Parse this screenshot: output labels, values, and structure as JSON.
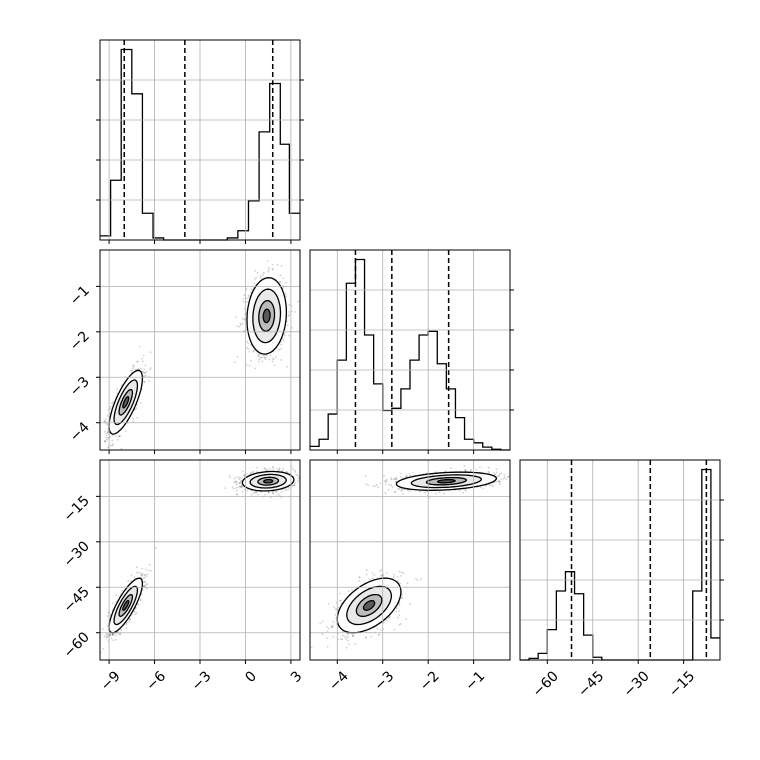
{
  "chart_data": {
    "type": "corner",
    "title": "",
    "grid": true,
    "parameters": [
      {
        "ticks": [
          -9,
          -6,
          -3,
          0,
          3
        ],
        "tick_labels": [
          "−9",
          "−6",
          "−3",
          "0",
          "3"
        ],
        "range": [
          -9.6,
          3.6
        ],
        "quantiles": [
          -8.0,
          -4.0,
          1.8
        ]
      },
      {
        "ticks": [
          -4,
          -3,
          -2,
          -1
        ],
        "tick_labels": [
          "−4",
          "−3",
          "−2",
          "−1"
        ],
        "range": [
          -4.6,
          -0.2
        ],
        "quantiles": [
          -3.6,
          -2.8,
          -1.55
        ]
      },
      {
        "ticks": [
          -60,
          -45,
          -30,
          -15
        ],
        "tick_labels": [
          "−60",
          "−45",
          "−30",
          "−15"
        ],
        "range": [
          -69,
          -3
        ],
        "quantiles": [
          -52,
          -26,
          -7.5
        ]
      }
    ],
    "histograms": [
      {
        "param": 0,
        "bin_edges": [
          -9.6,
          -8.9,
          -8.2,
          -7.5,
          -6.8,
          -6.1,
          -5.4,
          -4.7,
          -4.0,
          -3.3,
          -2.6,
          -1.9,
          -1.2,
          -0.5,
          0.2,
          0.9,
          1.6,
          2.3,
          2.9,
          3.6
        ],
        "counts": [
          4,
          58,
          185,
          142,
          26,
          2,
          0,
          0,
          0,
          0,
          0,
          0,
          2,
          9,
          38,
          105,
          152,
          93,
          26
        ]
      },
      {
        "param": 1,
        "bin_edges": [
          -4.6,
          -4.4,
          -4.2,
          -4.0,
          -3.8,
          -3.6,
          -3.4,
          -3.2,
          -3.0,
          -2.8,
          -2.6,
          -2.4,
          -2.2,
          -2.0,
          -1.8,
          -1.6,
          -1.4,
          -1.2,
          -1.0,
          -0.8,
          -0.6,
          -0.4,
          -0.2
        ],
        "counts": [
          5,
          15,
          50,
          125,
          232,
          265,
          160,
          92,
          55,
          58,
          85,
          125,
          160,
          165,
          120,
          85,
          45,
          15,
          10,
          4,
          1,
          0
        ]
      },
      {
        "param": 2,
        "bin_edges": [
          -69,
          -66,
          -63,
          -60,
          -57,
          -54,
          -51,
          -48,
          -45,
          -42,
          -39,
          -36,
          -33,
          -30,
          -27,
          -24,
          -21,
          -18,
          -15,
          -12,
          -9,
          -6,
          -3
        ],
        "counts": [
          0,
          3,
          12,
          55,
          125,
          160,
          120,
          45,
          5,
          0,
          0,
          0,
          0,
          0,
          0,
          0,
          0,
          0,
          0,
          125,
          345,
          40
        ]
      }
    ],
    "scatter_clusters": [
      {
        "x": 0,
        "y": 1,
        "center": [
          -7.9,
          -3.55
        ],
        "spread": [
          0.55,
          0.35
        ],
        "corr": 0.75
      },
      {
        "x": 0,
        "y": 1,
        "center": [
          1.4,
          -1.65
        ],
        "spread": [
          0.65,
          0.42
        ],
        "corr": 0.1
      },
      {
        "x": 0,
        "y": 2,
        "center": [
          -7.9,
          -51
        ],
        "spread": [
          0.55,
          4.5
        ],
        "corr": 0.8
      },
      {
        "x": 0,
        "y": 2,
        "center": [
          1.5,
          -10
        ],
        "spread": [
          0.85,
          1.6
        ],
        "corr": 0.15
      },
      {
        "x": 1,
        "y": 2,
        "center": [
          -3.3,
          -51
        ],
        "spread": [
          0.35,
          4.5
        ],
        "corr": 0.5
      },
      {
        "x": 1,
        "y": 2,
        "center": [
          -1.6,
          -10
        ],
        "spread": [
          0.55,
          1.5
        ],
        "corr": 0.3
      }
    ]
  }
}
